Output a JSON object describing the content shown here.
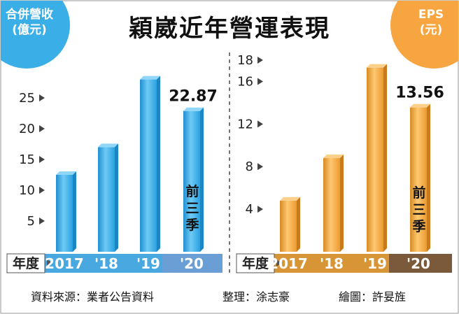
{
  "title": "穎崴近年營運表現",
  "footer": {
    "source": "資料來源：業者公告資料",
    "editor": "整理：涂志豪",
    "graphic": "繪圖：許妟旌"
  },
  "chart_data": [
    {
      "type": "bar",
      "ylabel_lines": [
        "合併營收",
        "(億元)"
      ],
      "categories": [
        "2017",
        "'18",
        "'19",
        "'20"
      ],
      "category_axis_label": "年度",
      "values": [
        12.5,
        17.0,
        28.0,
        22.87
      ],
      "ylim": [
        0,
        30
      ],
      "yticks": [
        5,
        10,
        15,
        20,
        25
      ],
      "value_labels": [
        "",
        "",
        "",
        "22.87"
      ],
      "bar_note": "前三季",
      "note_index": 3,
      "colors": {
        "badge": "#3aaee6",
        "bar": "#36aee8",
        "bar_dark": "#1a86c4",
        "bar_light": "#8fd6f8",
        "axis_band": "#4aa8e0",
        "axis_highlight": "#6a9fd6"
      }
    },
    {
      "type": "bar",
      "ylabel_lines": [
        "EPS",
        "(元)"
      ],
      "categories": [
        "2017",
        "'18",
        "'19",
        "'20"
      ],
      "category_axis_label": "年度",
      "values": [
        4.8,
        8.8,
        17.3,
        13.56
      ],
      "ylim": [
        0,
        18
      ],
      "yticks": [
        4,
        8,
        12,
        16,
        18
      ],
      "value_labels": [
        "",
        "",
        "",
        "13.56"
      ],
      "bar_note": "前三季",
      "note_index": 3,
      "colors": {
        "badge": "#f7a541",
        "bar": "#f4a43a",
        "bar_dark": "#c97a1a",
        "bar_light": "#fcd08a",
        "axis_band": "#d89536",
        "axis_highlight": "#7a5a3a"
      }
    }
  ]
}
